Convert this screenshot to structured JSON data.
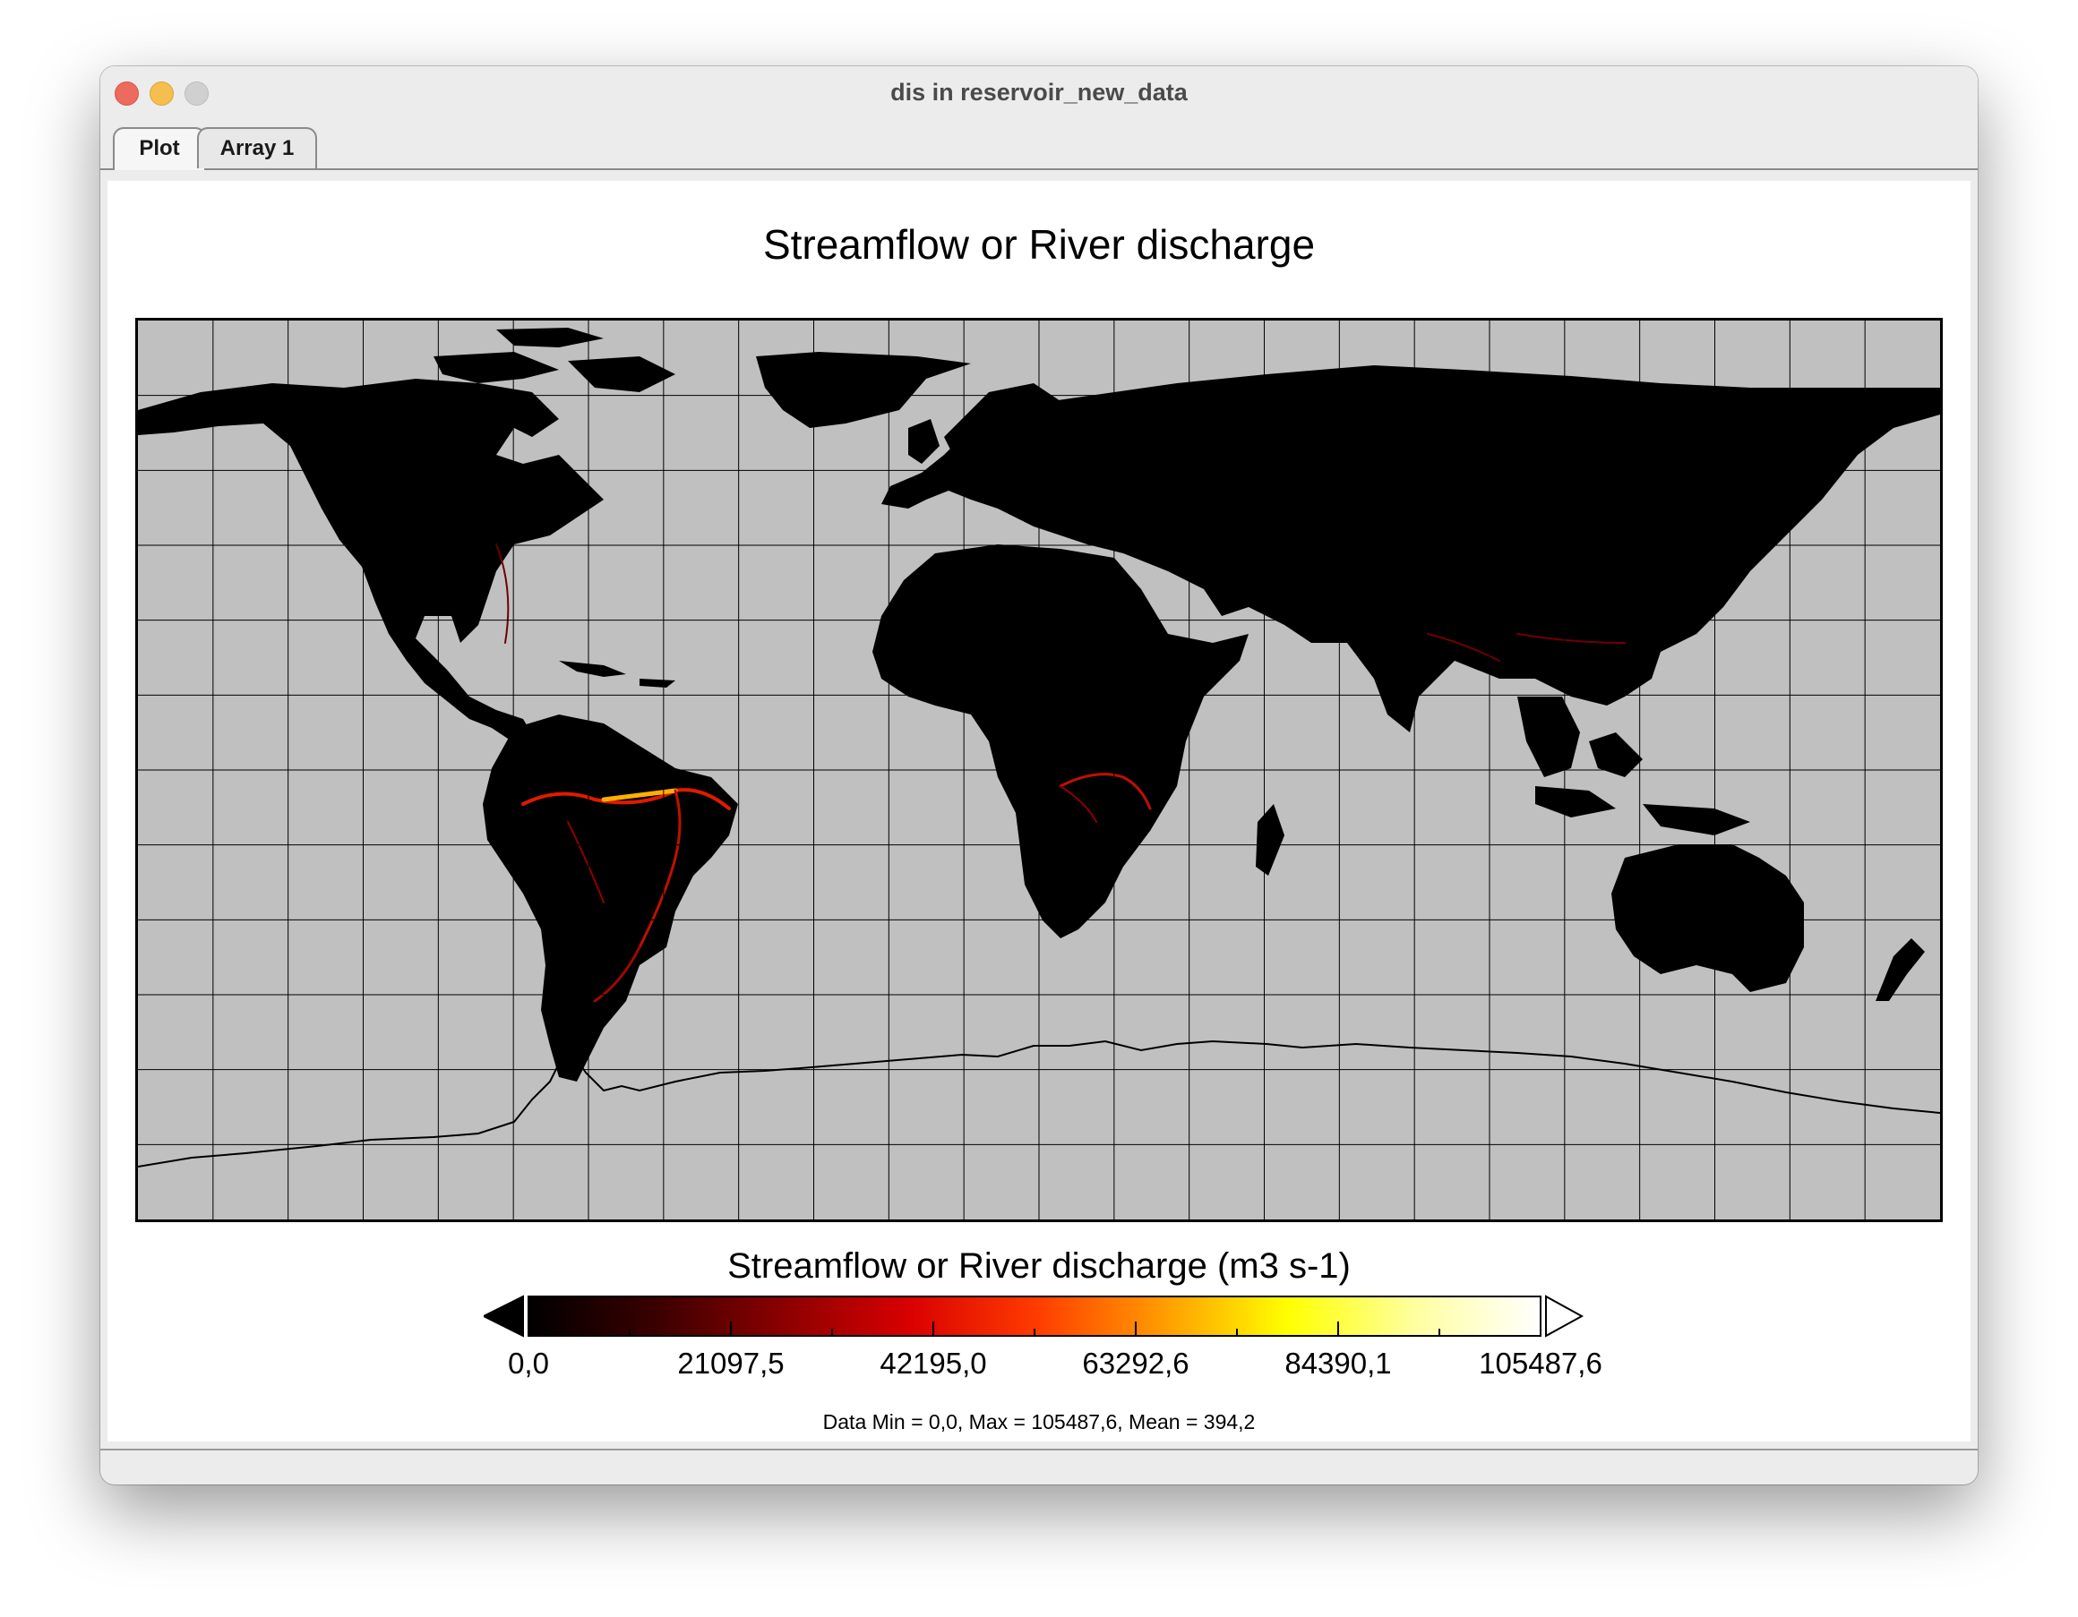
{
  "window": {
    "title": "dis in reservoir_new_data"
  },
  "tabs": [
    {
      "label": "Plot",
      "active": true
    },
    {
      "label": "Array 1",
      "active": false
    }
  ],
  "plot": {
    "title": "Streamflow or River discharge",
    "colorbar": {
      "title": "Streamflow or River discharge (m3 s-1)",
      "ticks": [
        "0,0",
        "21097,5",
        "42195,0",
        "63292,6",
        "84390,1",
        "105487,6"
      ],
      "min": 0.0,
      "max": 105487.6,
      "colormap": [
        "#000000",
        "#3a0000",
        "#8a0000",
        "#d80000",
        "#ff3a00",
        "#ff9a00",
        "#ffff00",
        "#ffffa0",
        "#ffffff"
      ]
    },
    "stats": "Data Min = 0,0, Max = 105487,6, Mean = 394,2",
    "colors": {
      "ocean": "#c0c0c0",
      "land": "#000000",
      "grid": "#000000"
    }
  }
}
